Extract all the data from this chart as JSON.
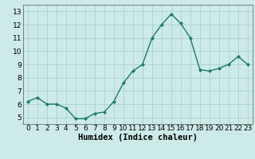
{
  "x": [
    0,
    1,
    2,
    3,
    4,
    5,
    6,
    7,
    8,
    9,
    10,
    11,
    12,
    13,
    14,
    15,
    16,
    17,
    18,
    19,
    20,
    21,
    22,
    23
  ],
  "y": [
    6.2,
    6.5,
    6.0,
    6.0,
    5.7,
    4.9,
    4.9,
    5.3,
    5.4,
    6.2,
    7.6,
    8.5,
    9.0,
    11.0,
    12.0,
    12.8,
    12.1,
    11.0,
    8.6,
    8.5,
    8.7,
    9.0,
    9.6,
    9.0
  ],
  "line_color": "#1a7a6e",
  "marker": "D",
  "marker_size": 2.0,
  "bg_color": "#cceae8",
  "grid_color": "#b0d4d2",
  "xlabel": "Humidex (Indice chaleur)",
  "ylim": [
    4.5,
    13.5
  ],
  "xlim": [
    -0.5,
    23.5
  ],
  "yticks": [
    5,
    6,
    7,
    8,
    9,
    10,
    11,
    12,
    13
  ],
  "xticks": [
    0,
    1,
    2,
    3,
    4,
    5,
    6,
    7,
    8,
    9,
    10,
    11,
    12,
    13,
    14,
    15,
    16,
    17,
    18,
    19,
    20,
    21,
    22,
    23
  ],
  "xlabel_fontsize": 7.5,
  "tick_fontsize": 6.5
}
